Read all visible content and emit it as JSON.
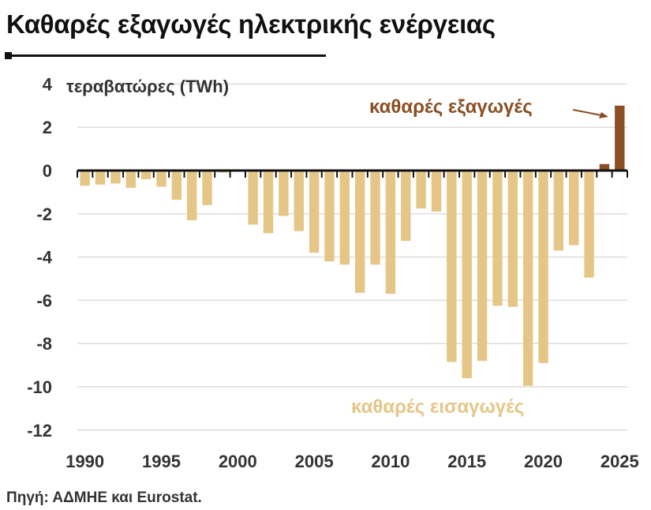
{
  "title": "Καθαρές εξαγωγές ηλεκτρικής ενέργειας",
  "source": "Πηγή: ΑΔΜΗΕ και Eurostat.",
  "colors": {
    "imports": "#e5c687",
    "exports": "#8a4f23",
    "text": "#333333",
    "grid": "#dddddd"
  },
  "chart_data": {
    "type": "bar",
    "ylabel": "τεραβατώρες (TWh)",
    "ylim": [
      -12,
      4
    ],
    "yticks": [
      4,
      2,
      0,
      -2,
      -4,
      -6,
      -8,
      -10,
      -12
    ],
    "xticks": [
      1990,
      1995,
      2000,
      2005,
      2010,
      2015,
      2020,
      2025
    ],
    "grid": true,
    "annotations": {
      "exports": "καθαρές εξαγωγές",
      "imports": "καθαρές εισαγωγές"
    },
    "x": [
      1990,
      1991,
      1992,
      1993,
      1994,
      1995,
      1996,
      1997,
      1998,
      1999,
      2000,
      2001,
      2002,
      2003,
      2004,
      2005,
      2006,
      2007,
      2008,
      2009,
      2010,
      2011,
      2012,
      2013,
      2014,
      2015,
      2016,
      2017,
      2018,
      2019,
      2020,
      2021,
      2022,
      2023,
      2024,
      2025
    ],
    "values": [
      -0.7,
      -0.65,
      -0.6,
      -0.8,
      -0.4,
      -0.75,
      -1.35,
      -2.3,
      -1.6,
      -0.1,
      0,
      -2.5,
      -2.9,
      -2.1,
      -2.8,
      -3.8,
      -4.2,
      -4.35,
      -5.65,
      -4.35,
      -5.7,
      -3.25,
      -1.75,
      -1.9,
      -8.85,
      -9.6,
      -8.8,
      -6.25,
      -6.3,
      -9.95,
      -8.9,
      -3.7,
      -3.45,
      -4.95,
      0.3,
      3.0
    ]
  }
}
